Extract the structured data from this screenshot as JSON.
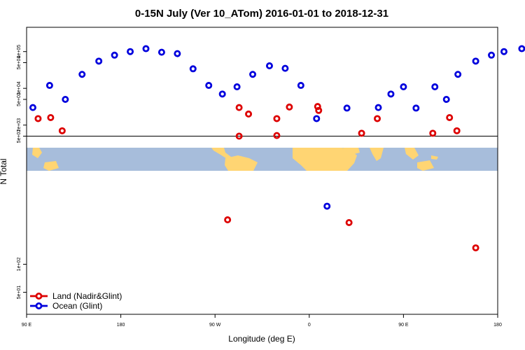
{
  "chart_data": {
    "type": "scatter",
    "title": "0-15N July (Ver 10_ATom)   2016-01-01 to 2018-12-31",
    "xlabel": "Longitude (deg E)",
    "ylabel": "N Total",
    "x_ticks": [
      {
        "value": 90,
        "label": "90 E"
      },
      {
        "value": 180,
        "label": "180"
      },
      {
        "value": 270,
        "label": "90 W"
      },
      {
        "value": 360,
        "label": "0"
      },
      {
        "value": 450,
        "label": "90 E"
      },
      {
        "value": 540,
        "label": "180"
      }
    ],
    "xlim": [
      90,
      540
    ],
    "y_ticks": [
      {
        "value": 10,
        "label": "1e+01"
      },
      {
        "value": 50,
        "label": "5e+01"
      },
      {
        "value": 100,
        "label": "1e+02"
      },
      {
        "value": 500,
        "label": "5e+02"
      },
      {
        "value": 1000,
        "label": "1e+03"
      },
      {
        "value": 5000,
        "label": "5e+03"
      },
      {
        "value": 10000,
        "label": "1e+04"
      },
      {
        "value": 50000,
        "label": "5e+04"
      },
      {
        "value": 100000,
        "label": "1e+05"
      }
    ],
    "y_scale": "split-log",
    "reference_line_y": 500,
    "map_band": {
      "ocean_color": "#a7bddb",
      "land_color": "#ffd573"
    },
    "series": [
      {
        "name": "Land (Nadir&Glint)",
        "color": "#dd0000",
        "x": [
          101,
          113,
          124,
          293,
          293,
          302,
          282,
          329,
          329,
          341,
          368,
          369,
          398,
          410,
          425,
          478,
          494,
          501,
          519,
          556
        ],
        "y": [
          1500,
          1600,
          700,
          3000,
          500,
          2000,
          300,
          520,
          1500,
          3100,
          3200,
          2500,
          280,
          600,
          1500,
          600,
          1600,
          700,
          150,
          10
        ]
      },
      {
        "name": "Ocean (Glint)",
        "color": "#0000dd",
        "x": [
          96,
          112,
          127,
          143,
          159,
          174,
          189,
          204,
          219,
          234,
          249,
          264,
          277,
          291,
          306,
          322,
          337,
          352,
          367,
          377,
          396,
          426,
          438,
          450,
          462,
          480,
          491,
          502,
          519,
          534,
          546,
          563
        ],
        "y": [
          3000,
          12000,
          5000,
          24000,
          55000,
          80000,
          100000,
          120000,
          96000,
          88000,
          34000,
          12000,
          7000,
          11000,
          24000,
          41000,
          35000,
          12000,
          1500,
          420,
          2900,
          3000,
          7000,
          11000,
          2900,
          11000,
          5000,
          24000,
          55000,
          80000,
          100000,
          120000
        ]
      }
    ],
    "legend": {
      "position": "bottom-left"
    }
  }
}
